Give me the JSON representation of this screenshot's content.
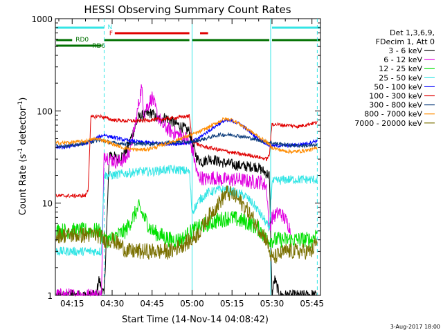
{
  "chart_data": {
    "type": "line",
    "title": "HESSI Observing Summary Count Rates",
    "xlabel": "Start Time (14-Nov-14 04:08:42)",
    "ylabel_main": "Count Rate (s",
    "ylabel_sup1": "-1",
    "ylabel_mid": " detector",
    "ylabel_sup2": "-1",
    "ylabel_end": ")",
    "ylog": true,
    "ylim": [
      1,
      1000
    ],
    "xlim_min": [
      8.7,
      108.2
    ],
    "x_ticks": [
      {
        "label": "04:15",
        "min": 15
      },
      {
        "label": "04:30",
        "min": 30
      },
      {
        "label": "04:45",
        "min": 45
      },
      {
        "label": "05:00",
        "min": 60
      },
      {
        "label": "05:15",
        "min": 75
      },
      {
        "label": "05:30",
        "min": 90
      },
      {
        "label": "05:45",
        "min": 105
      }
    ],
    "y_ticks": [
      {
        "label": "1",
        "v": 1
      },
      {
        "label": "10",
        "v": 10
      },
      {
        "label": "100",
        "v": 100
      },
      {
        "label": "1000",
        "v": 1000
      }
    ],
    "legend_header": [
      "Det 1,3,6,9,",
      "FDecim 1, Att 0"
    ],
    "legend_position": "right",
    "footer_date": "3-Aug-2017 18:00",
    "flags": [
      {
        "label": "N",
        "color": "#33e5e5",
        "segments": [
          [
            9,
            27
          ],
          [
            90,
            108
          ]
        ],
        "row": 0
      },
      {
        "label": "F",
        "color": "#e00000",
        "segments": [
          [
            31,
            59
          ],
          [
            63,
            66
          ]
        ],
        "row": 1
      },
      {
        "label": "RD0",
        "color": "#007000",
        "segments": [
          [
            9,
            15
          ],
          [
            27,
            59
          ],
          [
            60,
            89
          ],
          [
            90,
            108
          ]
        ],
        "row": 2
      },
      {
        "label": "RD6",
        "color": "#007000",
        "segments": [
          [
            9,
            26
          ]
        ],
        "row": 3
      }
    ],
    "vlines": [
      {
        "min": 27,
        "style": "dashed"
      },
      {
        "min": 60,
        "style": "solid"
      },
      {
        "min": 89.5,
        "style": "solid"
      },
      {
        "min": 107,
        "style": "dashed"
      }
    ],
    "series": [
      {
        "name": "3 - 6 keV",
        "color": "#000000",
        "x": [
          9,
          24,
          25,
          26,
          27,
          29,
          32,
          35,
          38,
          40,
          42,
          45,
          47,
          50,
          53,
          55,
          57,
          59,
          60,
          62,
          64,
          66,
          68,
          70,
          73,
          76,
          80,
          84,
          87,
          89,
          90,
          91,
          92,
          93,
          94,
          105,
          107
        ],
        "y": [
          1,
          1,
          1.5,
          1.2,
          1,
          35,
          30,
          35,
          60,
          85,
          90,
          95,
          80,
          85,
          75,
          70,
          65,
          60,
          45,
          30,
          28,
          30,
          30,
          28,
          27,
          26,
          25,
          25,
          22,
          20,
          1,
          1.5,
          1.2,
          1,
          1,
          1,
          1
        ]
      },
      {
        "name": "6 - 12 keV",
        "color": "#e000e0",
        "x": [
          9,
          26,
          27,
          29,
          32,
          35,
          37,
          39,
          41,
          42,
          43,
          45,
          47,
          49,
          52,
          55,
          58,
          60,
          62,
          65,
          68,
          71,
          74,
          78,
          82,
          86,
          88,
          89,
          90,
          93,
          96,
          97
        ],
        "y": [
          1,
          1,
          35,
          30,
          28,
          30,
          40,
          80,
          180,
          95,
          110,
          140,
          90,
          70,
          60,
          55,
          50,
          40,
          20,
          18,
          19,
          18,
          18,
          18,
          17,
          17,
          15,
          5,
          7,
          8,
          6,
          5
        ]
      },
      {
        "name": "12 - 25 keV",
        "color": "#00e000",
        "x": [
          9,
          15,
          20,
          25,
          27,
          29,
          32,
          35,
          40,
          42,
          45,
          48,
          52,
          56,
          60,
          63,
          66,
          70,
          74,
          78,
          82,
          86,
          88,
          90,
          95,
          100,
          105,
          107
        ],
        "y": [
          5,
          5,
          5,
          5,
          4,
          4,
          4.5,
          5,
          9,
          7,
          5,
          4.5,
          4,
          4,
          5,
          5.5,
          6,
          6.5,
          7,
          6.5,
          6,
          5,
          4,
          4,
          4,
          4,
          4,
          5
        ]
      },
      {
        "name": "25 - 50 keV",
        "color": "#33e5e5",
        "x": [
          9,
          26,
          27,
          30,
          35,
          40,
          45,
          50,
          55,
          59,
          60,
          63,
          66,
          70,
          73,
          76,
          80,
          84,
          88,
          89,
          90,
          95,
          100,
          107
        ],
        "y": [
          3,
          3,
          20,
          20,
          21,
          22,
          22,
          23,
          23,
          22,
          8,
          11,
          13,
          14,
          14,
          13,
          12,
          9,
          6,
          5,
          17,
          18,
          18,
          18
        ]
      },
      {
        "name": "50 - 100 keV",
        "color": "#0000ff",
        "x": [
          9,
          12,
          15,
          20,
          25,
          27,
          30,
          35,
          40,
          45,
          50,
          55,
          60,
          63,
          66,
          70,
          72,
          75,
          78,
          81,
          84,
          87,
          89,
          92,
          96,
          100,
          104,
          107
        ],
        "y": [
          40,
          40,
          42,
          44,
          52,
          55,
          52,
          48,
          46,
          45,
          44,
          44,
          46,
          52,
          60,
          72,
          78,
          78,
          72,
          62,
          52,
          46,
          42,
          42,
          42,
          43,
          45,
          48
        ]
      },
      {
        "name": "100 - 300 keV",
        "color": "#e00000",
        "x": [
          9,
          15,
          20,
          21,
          22,
          25,
          27,
          30,
          35,
          40,
          45,
          50,
          55,
          59,
          60,
          63,
          66,
          70,
          74,
          78,
          82,
          86,
          88,
          89,
          90,
          95,
          100,
          104,
          107
        ],
        "y": [
          12,
          12,
          12,
          14,
          85,
          88,
          85,
          80,
          78,
          78,
          80,
          82,
          85,
          88,
          48,
          42,
          40,
          38,
          36,
          34,
          33,
          31,
          30,
          33,
          72,
          70,
          68,
          72,
          75
        ]
      },
      {
        "name": "300 - 800 keV",
        "color": "#0a3a7a",
        "x": [
          9,
          15,
          20,
          25,
          27,
          30,
          35,
          40,
          45,
          50,
          55,
          60,
          65,
          70,
          75,
          80,
          85,
          90,
          95,
          100,
          105,
          107
        ],
        "y": [
          42,
          42,
          45,
          48,
          47,
          45,
          44,
          44,
          44,
          45,
          46,
          46,
          50,
          55,
          55,
          52,
          48,
          45,
          43,
          42,
          42,
          43
        ]
      },
      {
        "name": "800 - 7000 keV",
        "color": "#ff8c00",
        "x": [
          9,
          12,
          16,
          20,
          24,
          27,
          30,
          34,
          38,
          42,
          46,
          50,
          54,
          58,
          62,
          66,
          70,
          72,
          75,
          78,
          82,
          86,
          88,
          90,
          94,
          98,
          102,
          105,
          107
        ],
        "y": [
          45,
          45,
          46,
          47,
          50,
          48,
          44,
          40,
          38,
          38,
          40,
          44,
          48,
          53,
          58,
          66,
          76,
          82,
          80,
          72,
          60,
          50,
          46,
          40,
          37,
          36,
          37,
          38,
          40
        ]
      },
      {
        "name": "7000 - 20000 keV",
        "color": "#7a7000",
        "x": [
          9,
          15,
          20,
          25,
          27,
          30,
          33,
          36,
          40,
          44,
          48,
          52,
          56,
          60,
          63,
          66,
          70,
          73,
          76,
          80,
          84,
          88,
          89,
          90,
          95,
          100,
          105,
          107
        ],
        "y": [
          4.5,
          4.5,
          4.5,
          4.5,
          4,
          4,
          3.5,
          3,
          3,
          3,
          3,
          3,
          3.5,
          4,
          5,
          7,
          10,
          13,
          12,
          9,
          6,
          4,
          3,
          2.5,
          3,
          3,
          3,
          4
        ]
      }
    ]
  }
}
